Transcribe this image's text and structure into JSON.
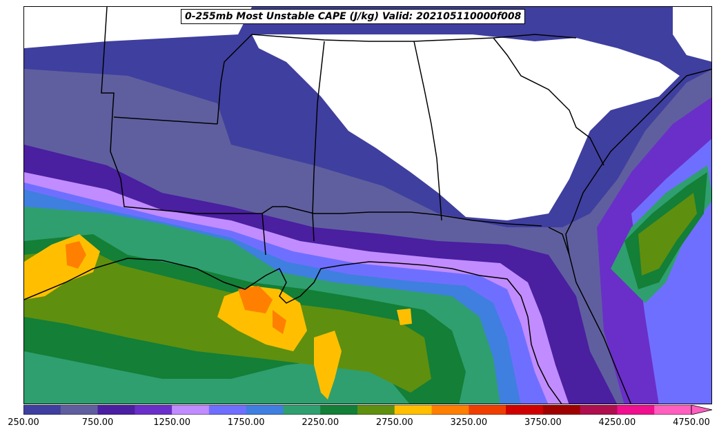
{
  "title": "0-255mb Most Unstable CAPE (J/kg) Valid: 202105110000f008",
  "colorbar": {
    "colors": [
      "#3f3f9f",
      "#5f5f9f",
      "#4a1fa0",
      "#6a2fc8",
      "#c18cff",
      "#6f6fff",
      "#3f7fdf",
      "#2f9f6f",
      "#137f37",
      "#5f8f0f",
      "#ffbf00",
      "#ff7f00",
      "#ef3f00",
      "#cf0000",
      "#9f0000",
      "#af0f4f",
      "#ef0f8f",
      "#ff5fbf"
    ],
    "ticks": [
      "250.00",
      "750.00",
      "1250.00",
      "1750.00",
      "2250.00",
      "2750.00",
      "3250.00",
      "3750.00",
      "4250.00",
      "4750.00"
    ]
  },
  "map_fill": {
    "low": "#3f3f9f",
    "mid_low": "#5f5f9f",
    "violet": "#4a1fa0",
    "purple": "#6a2fc8",
    "lavender": "#c18cff",
    "blue": "#6f6fff",
    "steel": "#3f7fdf",
    "teal": "#2f9f6f",
    "green": "#137f37",
    "olive": "#5f8f0f",
    "yellow": "#ffbf00",
    "orange": "#ff7f00"
  }
}
